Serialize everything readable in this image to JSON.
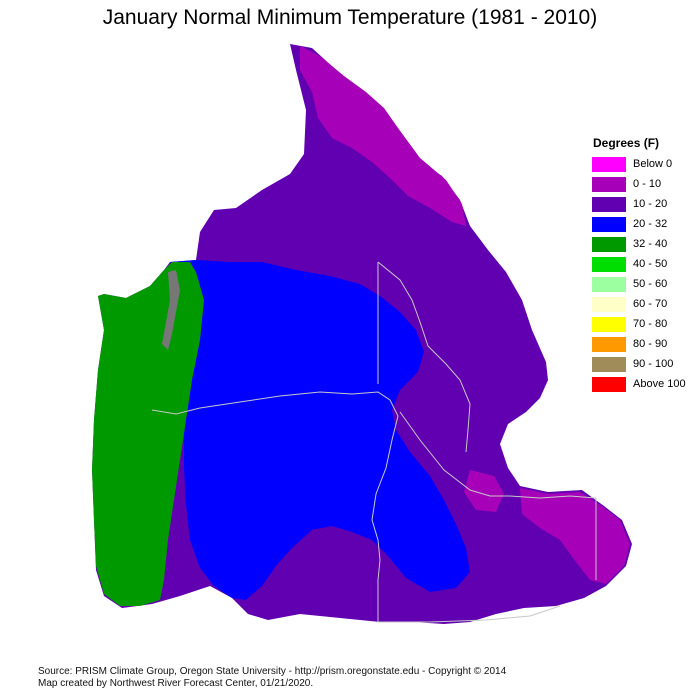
{
  "title": "January Normal Minimum Temperature (1981 - 2010)",
  "legend": {
    "title": "Degrees (F)",
    "items": [
      {
        "label": "Below 0",
        "color": "#ff00ff"
      },
      {
        "label": "0 - 10",
        "color": "#a600b8"
      },
      {
        "label": "10 - 20",
        "color": "#6000b0"
      },
      {
        "label": "20 - 32",
        "color": "#0000ff"
      },
      {
        "label": "32 - 40",
        "color": "#009900"
      },
      {
        "label": "40 - 50",
        "color": "#00dd00"
      },
      {
        "label": "50 - 60",
        "color": "#9cffa0"
      },
      {
        "label": "60 - 70",
        "color": "#ffffc8"
      },
      {
        "label": "70 - 80",
        "color": "#ffff00"
      },
      {
        "label": "80 - 90",
        "color": "#ff9900"
      },
      {
        "label": "90 - 100",
        "color": "#a08c58"
      },
      {
        "label": "Above 100",
        "color": "#ff0000"
      }
    ]
  },
  "footer": {
    "line1": "Source: PRISM Climate Group, Oregon State University - http://prism.oregonstate.edu - Copyright © 2014",
    "line2": "Map created by Northwest River Forecast Center, 01/21/2020."
  }
}
